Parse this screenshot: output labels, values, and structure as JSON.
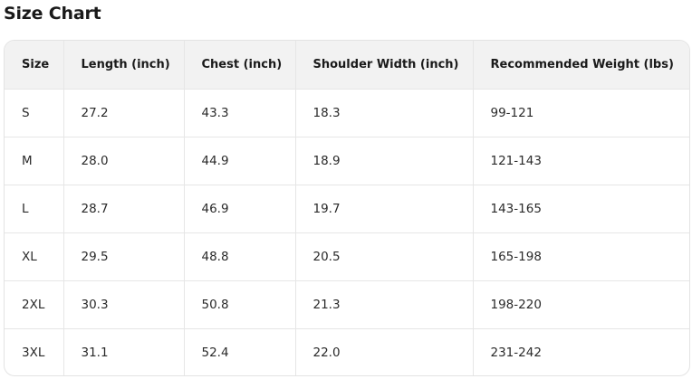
{
  "title": "Size Chart",
  "table": {
    "headers": [
      "Size",
      "Length (inch)",
      "Chest (inch)",
      "Shoulder Width (inch)",
      "Recommended Weight (lbs)"
    ],
    "rows": [
      [
        "S",
        "27.2",
        "43.3",
        "18.3",
        "99-121"
      ],
      [
        "M",
        "28.0",
        "44.9",
        "18.9",
        "121-143"
      ],
      [
        "L",
        "28.7",
        "46.9",
        "19.7",
        "143-165"
      ],
      [
        "XL",
        "29.5",
        "48.8",
        "20.5",
        "165-198"
      ],
      [
        "2XL",
        "30.3",
        "50.8",
        "21.3",
        "198-220"
      ],
      [
        "3XL",
        "31.1",
        "52.4",
        "22.0",
        "231-242"
      ]
    ]
  }
}
